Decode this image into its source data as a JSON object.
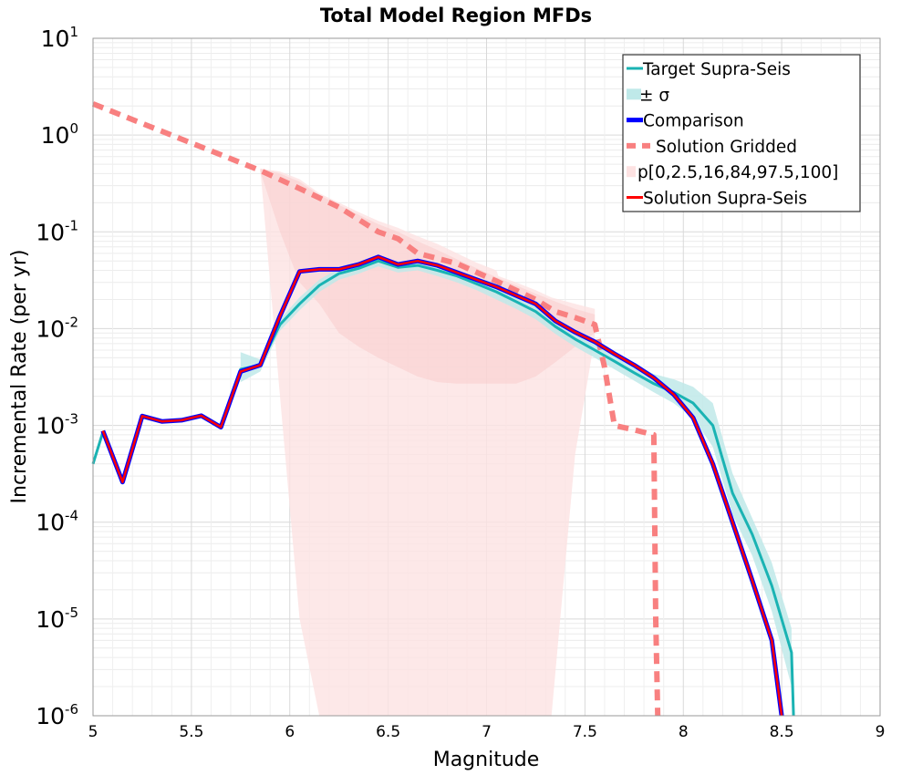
{
  "chart_data": {
    "type": "line",
    "title": "Total Model Region MFDs",
    "xlabel": "Magnitude",
    "ylabel": "Incremental Rate (per yr)",
    "xlim": [
      5,
      9
    ],
    "ylim": [
      1e-06,
      10
    ],
    "y_scale": "log",
    "grid": true,
    "legend_position": "top-right",
    "x_ticks": [
      "5",
      "5.5",
      "6",
      "6.5",
      "7",
      "7.5",
      "8",
      "8.5",
      "9"
    ],
    "y_ticks": [
      {
        "base": "10",
        "exp": "1"
      },
      {
        "base": "10",
        "exp": "0"
      },
      {
        "base": "10",
        "exp": "-1"
      },
      {
        "base": "10",
        "exp": "-2"
      },
      {
        "base": "10",
        "exp": "-3"
      },
      {
        "base": "10",
        "exp": "-4"
      },
      {
        "base": "10",
        "exp": "-5"
      },
      {
        "base": "10",
        "exp": "-6"
      }
    ],
    "colors": {
      "target": "#1ab3b3",
      "sigma_band": "#bfe9e9",
      "comparison": "#0000ff",
      "gridded": "#f88080",
      "percentile_band": "#fde2e2",
      "supra": "#ff0000"
    },
    "legend": [
      {
        "label": "Target Supra-Seis",
        "style": "target"
      },
      {
        "label": "± σ",
        "style": "sigma"
      },
      {
        "label": "Comparison",
        "style": "comparison"
      },
      {
        "label": "Solution Gridded",
        "style": "gridded"
      },
      {
        "label": "p[0,2.5,16,84,97.5,100]",
        "style": "band"
      },
      {
        "label": "Solution Supra-Seis",
        "style": "supra"
      }
    ],
    "series": [
      {
        "name": "Target Supra-Seis",
        "x": [
          5.0,
          5.05,
          5.15,
          5.25,
          5.35,
          5.45,
          5.55,
          5.65,
          5.75,
          5.85,
          5.95,
          6.05,
          6.15,
          6.25,
          6.35,
          6.45,
          6.55,
          6.65,
          6.75,
          6.85,
          6.95,
          7.05,
          7.15,
          7.25,
          7.35,
          7.45,
          7.55,
          7.65,
          7.75,
          7.85,
          7.95,
          8.05,
          8.15,
          8.25,
          8.35,
          8.45,
          8.55,
          8.56
        ],
        "y": [
          0.0004,
          0.00085,
          0.00027,
          0.00125,
          0.0011,
          0.00115,
          0.00125,
          0.00097,
          0.0038,
          0.0042,
          0.011,
          0.018,
          0.028,
          0.037,
          0.042,
          0.05,
          0.043,
          0.045,
          0.04,
          0.035,
          0.029,
          0.024,
          0.019,
          0.015,
          0.0105,
          0.0078,
          0.006,
          0.0046,
          0.0035,
          0.0027,
          0.0022,
          0.0017,
          0.001,
          0.0002,
          7.5e-05,
          2.2e-05,
          4.5e-06,
          1e-06
        ]
      },
      {
        "name": "Comparison",
        "x": [
          5.05,
          5.15,
          5.25,
          5.35,
          5.45,
          5.55,
          5.65,
          5.75,
          5.85,
          5.95,
          6.05,
          6.15,
          6.25,
          6.35,
          6.45,
          6.55,
          6.65,
          6.75,
          6.85,
          6.95,
          7.05,
          7.15,
          7.25,
          7.35,
          7.45,
          7.55,
          7.65,
          7.75,
          7.85,
          7.95,
          8.05,
          8.15,
          8.25,
          8.35,
          8.45,
          8.5
        ],
        "y": [
          0.00088,
          0.00026,
          0.00125,
          0.0011,
          0.00113,
          0.00126,
          0.00096,
          0.0036,
          0.0042,
          0.0135,
          0.039,
          0.041,
          0.041,
          0.046,
          0.055,
          0.046,
          0.05,
          0.045,
          0.038,
          0.032,
          0.027,
          0.022,
          0.018,
          0.012,
          0.0092,
          0.0073,
          0.0055,
          0.0042,
          0.0031,
          0.0021,
          0.0012,
          0.0004,
          0.0001,
          2.5e-05,
          6e-06,
          1e-06
        ]
      },
      {
        "name": "Solution Supra-Seis",
        "x": [
          5.05,
          5.15,
          5.25,
          5.35,
          5.45,
          5.55,
          5.65,
          5.75,
          5.85,
          5.95,
          6.05,
          6.15,
          6.25,
          6.35,
          6.45,
          6.55,
          6.65,
          6.75,
          6.85,
          6.95,
          7.05,
          7.15,
          7.25,
          7.35,
          7.45,
          7.55,
          7.65,
          7.75,
          7.85,
          7.95,
          8.05,
          8.15,
          8.25,
          8.35,
          8.45,
          8.5
        ],
        "y": [
          0.00088,
          0.00026,
          0.00125,
          0.0011,
          0.00113,
          0.00126,
          0.00096,
          0.0036,
          0.0042,
          0.0135,
          0.039,
          0.041,
          0.041,
          0.046,
          0.055,
          0.046,
          0.05,
          0.045,
          0.038,
          0.032,
          0.027,
          0.022,
          0.018,
          0.012,
          0.0092,
          0.0073,
          0.0055,
          0.0042,
          0.0031,
          0.0021,
          0.0012,
          0.0004,
          0.0001,
          2.5e-05,
          6e-06,
          1e-06
        ]
      },
      {
        "name": "Solution Gridded",
        "x": [
          5.0,
          5.85,
          6.05,
          6.25,
          6.45,
          6.55,
          6.65,
          6.85,
          7.05,
          7.25,
          7.35,
          7.45,
          7.55,
          7.6,
          7.65,
          7.75,
          7.85,
          7.86,
          7.87
        ],
        "y": [
          2.1,
          0.43,
          0.28,
          0.18,
          0.1,
          0.085,
          0.06,
          0.047,
          0.031,
          0.02,
          0.015,
          0.013,
          0.011,
          0.004,
          0.001,
          0.0009,
          0.0008,
          1e-05,
          1e-06
        ]
      }
    ],
    "bands": {
      "sigma": {
        "x": [
          5.75,
          5.85,
          5.95,
          6.05,
          6.15,
          6.25,
          6.35,
          6.45,
          6.55,
          6.65,
          6.75,
          6.85,
          6.95,
          7.05,
          7.15,
          7.25,
          7.35,
          7.45,
          7.55,
          7.65,
          7.75,
          7.85,
          7.95,
          8.05,
          8.15,
          8.25,
          8.35,
          8.45,
          8.55
        ],
        "lower": [
          0.0028,
          0.0036,
          0.0095,
          0.0155,
          0.024,
          0.032,
          0.037,
          0.044,
          0.038,
          0.04,
          0.035,
          0.03,
          0.025,
          0.02,
          0.016,
          0.0125,
          0.0088,
          0.0065,
          0.005,
          0.0038,
          0.0029,
          0.0022,
          0.0017,
          0.0012,
          0.0006,
          0.00012,
          4.5e-05,
          1.2e-05,
          2e-06
        ],
        "upper": [
          0.0057,
          0.0048,
          0.0125,
          0.021,
          0.032,
          0.042,
          0.048,
          0.057,
          0.049,
          0.052,
          0.046,
          0.04,
          0.034,
          0.029,
          0.023,
          0.018,
          0.0125,
          0.0095,
          0.0072,
          0.0056,
          0.0043,
          0.0034,
          0.003,
          0.0025,
          0.0017,
          0.00032,
          0.00011,
          3.8e-05,
          8e-06
        ]
      },
      "percentile_outer": {
        "x": [
          5.85,
          5.95,
          6.05,
          6.15,
          6.25,
          6.35,
          6.45,
          6.55,
          6.65,
          6.75,
          6.85,
          6.95,
          7.05,
          7.06,
          7.15,
          7.25,
          7.33,
          7.45,
          7.55
        ],
        "lower": [
          0.45,
          0.002,
          1e-05,
          1e-06,
          1e-06,
          1e-06,
          1e-06,
          1e-06,
          1e-06,
          1e-06,
          1e-06,
          1e-06,
          1e-06,
          1e-06,
          1e-06,
          1e-06,
          1e-06,
          0.0005,
          0.008
        ],
        "upper": [
          0.45,
          0.42,
          0.35,
          0.25,
          0.2,
          0.16,
          0.13,
          0.11,
          0.09,
          0.075,
          0.06,
          0.048,
          0.04,
          0.035,
          0.03,
          0.025,
          0.021,
          0.018,
          0.016
        ]
      },
      "percentile_mid": {
        "x": [
          5.85,
          5.95,
          6.05,
          6.15,
          6.25,
          6.35,
          6.45,
          6.55,
          6.65,
          6.75,
          6.85,
          6.95,
          7.05,
          7.15,
          7.25,
          7.35,
          7.45,
          7.55
        ],
        "lower": [
          0.42,
          0.1,
          0.03,
          0.018,
          0.009,
          0.0065,
          0.005,
          0.004,
          0.0032,
          0.0028,
          0.0027,
          0.0027,
          0.0027,
          0.0027,
          0.0032,
          0.0045,
          0.0065,
          0.009
        ],
        "upper": [
          0.45,
          0.4,
          0.33,
          0.24,
          0.19,
          0.15,
          0.12,
          0.1,
          0.08,
          0.065,
          0.052,
          0.042,
          0.034,
          0.028,
          0.023,
          0.019,
          0.016,
          0.014
        ]
      }
    }
  }
}
